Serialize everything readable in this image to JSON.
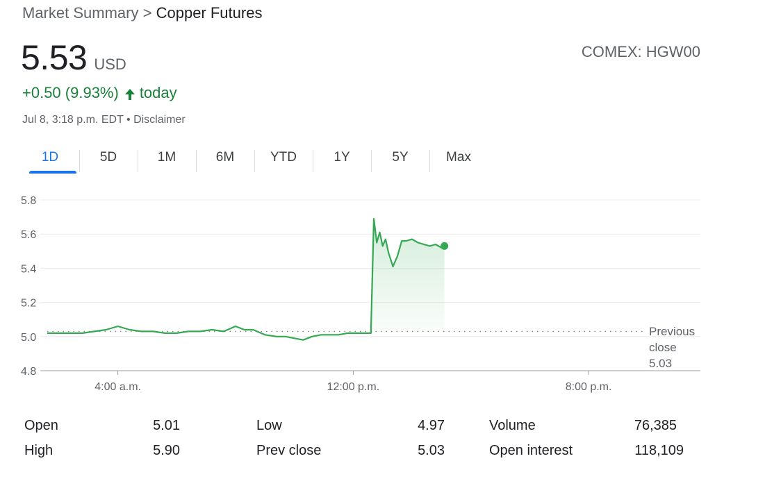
{
  "breadcrumb": {
    "parent": "Market Summary",
    "separator": ">",
    "current": "Copper Futures"
  },
  "quote": {
    "price": "5.53",
    "currency": "USD",
    "exchange": "COMEX: HGW00",
    "change": "+0.50 (9.93%)",
    "change_period": "today",
    "timestamp": "Jul 8, 3:18 p.m. EDT",
    "meta_sep": "•",
    "disclaimer": "Disclaimer"
  },
  "colors": {
    "up": "#188038",
    "line": "#34a853",
    "accent": "#1a73e8"
  },
  "icons": {
    "change_arrow": "arrow-up-icon"
  },
  "tabs": [
    {
      "label": "1D",
      "active": true
    },
    {
      "label": "5D"
    },
    {
      "label": "1M"
    },
    {
      "label": "6M"
    },
    {
      "label": "YTD"
    },
    {
      "label": "1Y"
    },
    {
      "label": "5Y"
    },
    {
      "label": "Max"
    }
  ],
  "chart_data": {
    "type": "line",
    "title": "",
    "xlabel": "",
    "ylabel": "",
    "ylim": [
      4.8,
      5.8
    ],
    "yticks": [
      "5.8",
      "5.6",
      "5.4",
      "5.2",
      "5.0",
      "4.8"
    ],
    "xlim_hours": [
      1.6,
      23.8
    ],
    "xticks": [
      {
        "hour": 4,
        "label": "4:00 a.m."
      },
      {
        "hour": 12,
        "label": "12:00 p.m."
      },
      {
        "hour": 20,
        "label": "8:00 p.m."
      }
    ],
    "grid": true,
    "previous_close": {
      "value": 5.03,
      "label_lines": [
        "Previous",
        "close",
        "5.03"
      ]
    },
    "series": [
      {
        "x": [
          1.6,
          2.0,
          2.4,
          2.8,
          3.2,
          3.6,
          4.0,
          4.4,
          4.8,
          5.2,
          5.6,
          6.0,
          6.4,
          6.8,
          7.2,
          7.6,
          8.0,
          8.3,
          8.6,
          9.0,
          9.4,
          9.7,
          10.0,
          10.3,
          10.6,
          10.9,
          11.2,
          11.5,
          11.8,
          12.2,
          12.6,
          12.7,
          12.8,
          12.9,
          13.0,
          13.1,
          13.2,
          13.35,
          13.5,
          13.65,
          13.8,
          14.0,
          14.2,
          14.4,
          14.6,
          14.8,
          15.0,
          15.1
        ],
        "y": [
          5.02,
          5.02,
          5.02,
          5.02,
          5.03,
          5.04,
          5.06,
          5.04,
          5.03,
          5.03,
          5.02,
          5.02,
          5.03,
          5.03,
          5.04,
          5.03,
          5.06,
          5.04,
          5.04,
          5.01,
          5.0,
          5.0,
          4.99,
          4.98,
          5.0,
          5.01,
          5.01,
          5.01,
          5.02,
          5.02,
          5.02,
          5.69,
          5.55,
          5.61,
          5.53,
          5.57,
          5.49,
          5.41,
          5.47,
          5.56,
          5.56,
          5.57,
          5.55,
          5.54,
          5.53,
          5.54,
          5.52,
          5.53
        ]
      }
    ]
  },
  "stats": [
    {
      "label": "Open",
      "value": "5.01"
    },
    {
      "label": "High",
      "value": "5.90"
    },
    {
      "label": "Low",
      "value": "4.97"
    },
    {
      "label": "Prev close",
      "value": "5.03"
    },
    {
      "label": "Volume",
      "value": "76,385"
    },
    {
      "label": "Open interest",
      "value": "118,109"
    }
  ]
}
